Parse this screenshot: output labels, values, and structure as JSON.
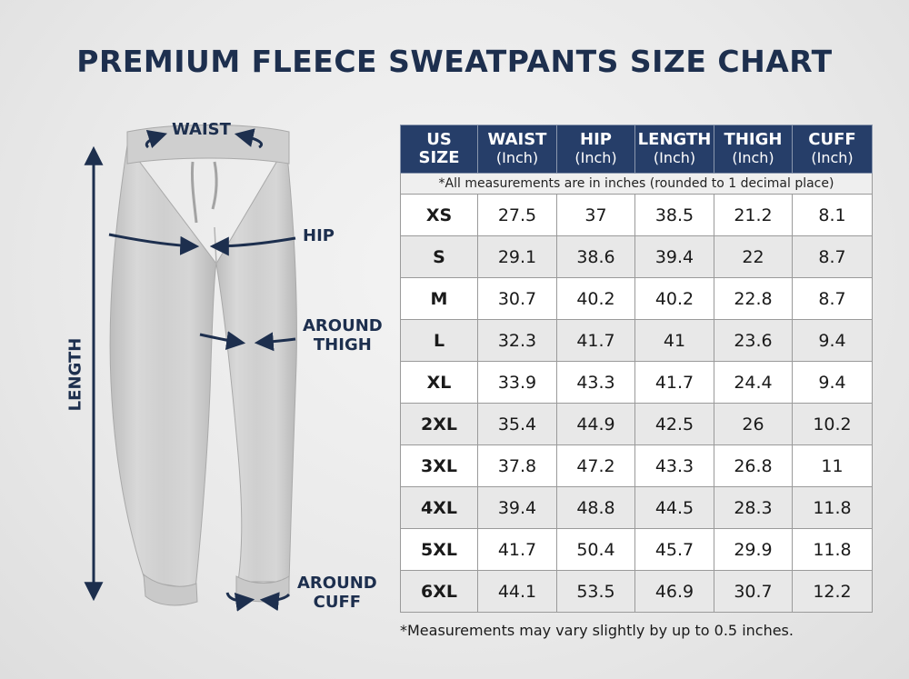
{
  "title": "PREMIUM FLEECE SWEATPANTS SIZE CHART",
  "colors": {
    "navy": "#1d2f4e",
    "header_bg": "#263e69",
    "alt_row": "#e8e8e8"
  },
  "diagram": {
    "labels": {
      "waist": "WAIST",
      "hip": "HIP",
      "thigh_line1": "AROUND",
      "thigh_line2": "THIGH",
      "cuff_line1": "AROUND",
      "cuff_line2": "CUFF",
      "length": "LENGTH"
    }
  },
  "table": {
    "headers": [
      {
        "line1": "US",
        "line2": "SIZE"
      },
      {
        "line1": "WAIST",
        "line2": "(Inch)"
      },
      {
        "line1": "HIP",
        "line2": "(Inch)"
      },
      {
        "line1": "LENGTH",
        "line2": "(Inch)"
      },
      {
        "line1": "THIGH",
        "line2": "(Inch)"
      },
      {
        "line1": "CUFF",
        "line2": "(Inch)"
      }
    ],
    "note": "*All measurements are in inches (rounded to 1 decimal place)",
    "rows": [
      [
        "XS",
        "27.5",
        "37",
        "38.5",
        "21.2",
        "8.1"
      ],
      [
        "S",
        "29.1",
        "38.6",
        "39.4",
        "22",
        "8.7"
      ],
      [
        "M",
        "30.7",
        "40.2",
        "40.2",
        "22.8",
        "8.7"
      ],
      [
        "L",
        "32.3",
        "41.7",
        "41",
        "23.6",
        "9.4"
      ],
      [
        "XL",
        "33.9",
        "43.3",
        "41.7",
        "24.4",
        "9.4"
      ],
      [
        "2XL",
        "35.4",
        "44.9",
        "42.5",
        "26",
        "10.2"
      ],
      [
        "3XL",
        "37.8",
        "47.2",
        "43.3",
        "26.8",
        "11"
      ],
      [
        "4XL",
        "39.4",
        "48.8",
        "44.5",
        "28.3",
        "11.8"
      ],
      [
        "5XL",
        "41.7",
        "50.4",
        "45.7",
        "29.9",
        "11.8"
      ],
      [
        "6XL",
        "44.1",
        "53.5",
        "46.9",
        "30.7",
        "12.2"
      ]
    ]
  },
  "footnote": "*Measurements may vary slightly by up to 0.5 inches."
}
